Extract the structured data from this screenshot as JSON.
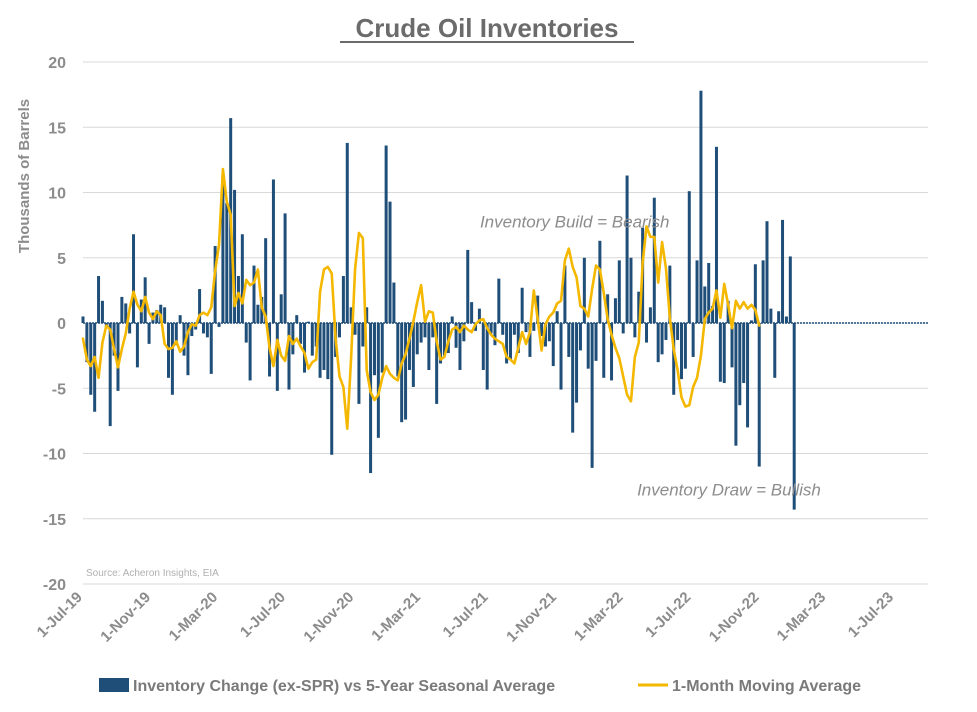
{
  "chart_data": {
    "type": "bar",
    "title": "Crude Oil Inventories",
    "ylabel": "Thousands of Barrels",
    "xlabel": "",
    "ylim": [
      -20,
      20
    ],
    "yticks": [
      20,
      15,
      10,
      5,
      0,
      -5,
      -10,
      -15,
      -20
    ],
    "grid": true,
    "legend_position": "bottom",
    "x_start": "2019-07-01",
    "x_end": "2023-08-31",
    "xtick_labels": [
      {
        "date": "2019-07-01",
        "label": "1-Jul-19"
      },
      {
        "date": "2019-11-01",
        "label": "1-Nov-19"
      },
      {
        "date": "2020-03-01",
        "label": "1-Mar-20"
      },
      {
        "date": "2020-07-01",
        "label": "1-Jul-20"
      },
      {
        "date": "2020-11-01",
        "label": "1-Nov-20"
      },
      {
        "date": "2021-03-01",
        "label": "1-Mar-21"
      },
      {
        "date": "2021-07-01",
        "label": "1-Jul-21"
      },
      {
        "date": "2021-11-01",
        "label": "1-Nov-21"
      },
      {
        "date": "2022-03-01",
        "label": "1-Mar-22"
      },
      {
        "date": "2022-07-01",
        "label": "1-Jul-22"
      },
      {
        "date": "2022-11-01",
        "label": "1-Nov-22"
      },
      {
        "date": "2023-03-01",
        "label": "1-Mar-23"
      },
      {
        "date": "2023-07-01",
        "label": "1-Jul-23"
      }
    ],
    "annotations": [
      {
        "text": "Inventory Build = Bearish",
        "date": "2021-06-15",
        "y": 7.3
      },
      {
        "text": "Inventory Draw = Bullish",
        "date": "2022-03-25",
        "y": -13.2
      }
    ],
    "source_note": "Source: Acheron Insights, EIA",
    "series": [
      {
        "name": "Inventory Change (ex-SPR) vs 5-Year Seasonal Average",
        "type": "bar",
        "color": "#1f4e79",
        "start_date": "2019-07-01",
        "week_step": 1,
        "values": [
          0.5,
          -3,
          -5.5,
          -6.8,
          3.6,
          1.7,
          -0.3,
          -7.9,
          -2.5,
          -5.2,
          2,
          1.5,
          -0.8,
          6.8,
          -3.4,
          1.8,
          3.5,
          -1.6,
          0.8,
          1,
          1.4,
          1.2,
          -4.2,
          -5.5,
          -1.7,
          0.6,
          -2.5,
          -4,
          -1,
          -0.5,
          2.6,
          -0.8,
          -1.1,
          -3.9,
          5.9,
          -0.3,
          11.3,
          9.2,
          15.7,
          10.2,
          3.6,
          6.8,
          -1.5,
          -4.4,
          4.4,
          1.4,
          2,
          6.5,
          -4.1,
          11,
          -5.2,
          2.2,
          8.4,
          -5.1,
          -2.4,
          0.6,
          -1.6,
          -3.8,
          0.1,
          -2.5,
          -1.8,
          -4.2,
          -3.6,
          -4.3,
          -10.1,
          -2.6,
          -1.1,
          3.6,
          13.8,
          1.2,
          -0.9,
          -6.2,
          -1.8,
          1.2,
          -11.5,
          -4,
          -8.8,
          -3.8,
          13.6,
          9.3,
          3.1,
          -4.1,
          -7.6,
          -7.4,
          -3.6,
          -4.9,
          -2.4,
          -1.5,
          -1.1,
          -3.6,
          -1.1,
          -6.2,
          -3.1,
          -2.5,
          -2.3,
          0.5,
          -1.9,
          -3.6,
          -1.4,
          5.6,
          1.6,
          -0.6,
          1.1,
          -3.6,
          -5.1,
          -0.8,
          -1.7,
          3.4,
          -0.9,
          -3.1,
          -2.8,
          -0.9,
          -2.3,
          2.7,
          -0.7,
          -2.6,
          -0.6,
          2.1,
          -1,
          -1.8,
          -1.4,
          -3.3,
          0.9,
          -5.1,
          4.4,
          -2.6,
          -8.4,
          -6.1,
          -2.1,
          5,
          -3.5,
          -11.1,
          -2.9,
          6.3,
          -4.2,
          2.2,
          -4.4,
          1.9,
          4.8,
          -0.8,
          11.3,
          5,
          -1.1,
          2.4,
          7.3,
          -1.5,
          1.2,
          9.6,
          -3,
          -2.4,
          -1.3,
          4.4,
          -5.5,
          -1.3,
          -4.3,
          -3.5,
          10.1,
          -2.6,
          4.8,
          17.8,
          2.8,
          4.6,
          1.3,
          13.5,
          -4.5,
          -4.6,
          1.7,
          -3.4,
          -9.4,
          -6.3,
          -4.6,
          -8,
          0.2,
          4.5,
          -11,
          4.8,
          7.8,
          1.1,
          -4.2,
          0.9,
          7.9,
          0.5,
          5.1,
          -14.3
        ]
      },
      {
        "name": "1-Month Moving Average",
        "type": "line",
        "color": "#f5b800",
        "start_date": "2019-07-01",
        "week_step": 1,
        "values": [
          -1.2,
          -2.8,
          -3.3,
          -2.6,
          -4.2,
          -1.5,
          -0.2,
          -0.5,
          -2,
          -3.4,
          -2,
          -0.8,
          1.1,
          2.4,
          1.4,
          0.9,
          2,
          0.8,
          0.3,
          0.9,
          0.6,
          -1.6,
          -2,
          -1.9,
          -1.4,
          -2.2,
          -1.8,
          -0.7,
          -0.1,
          -0.2,
          0.6,
          0.8,
          0.6,
          1.2,
          4,
          6,
          11.8,
          9.3,
          8.3,
          1.3,
          2.3,
          1.5,
          3.3,
          2.9,
          3.1,
          4.1,
          1.2,
          0.5,
          -1.9,
          -3.3,
          -1.3,
          -2.5,
          -2.9,
          -1,
          -1.6,
          -1.2,
          -1.8,
          -2.3,
          -3.5,
          -3,
          -2.8,
          2.4,
          4.1,
          4.3,
          3.8,
          -1.2,
          -4.1,
          -4.9,
          -8.1,
          -2.6,
          4.1,
          6.9,
          6.5,
          -3.6,
          -5.3,
          -5.9,
          -5.5,
          -4.2,
          -3.3,
          -3.9,
          -4.2,
          -4.4,
          -3.1,
          -2.4,
          -1.2,
          0.1,
          1.6,
          2.9,
          0.1,
          0.9,
          0.8,
          -1.4,
          -2.8,
          -2.6,
          -1.4,
          -0.5,
          -0.3,
          -0.7,
          -0.2,
          -0.5,
          -0.7,
          -0.1,
          0.2,
          0.3,
          -0.4,
          -0.9,
          -1.2,
          -1.4,
          -1.6,
          -2.6,
          -2.8,
          -3.1,
          -1.9,
          -0.7,
          -1.6,
          -0.7,
          2.5,
          0.3,
          -2.1,
          -0.1,
          0.5,
          0.8,
          1.5,
          1.7,
          4.8,
          5.7,
          4.3,
          3.5,
          1.3,
          1.1,
          0.5,
          2.6,
          4.4,
          4.1,
          2.3,
          0.3,
          -0.9,
          -1.9,
          -2.7,
          -4.1,
          -5.5,
          -6,
          -2.6,
          -1.5,
          4.6,
          7.4,
          6.6,
          6.6,
          3.1,
          6.2,
          4.2,
          0.4,
          -2,
          -3.6,
          -5.7,
          -6.4,
          -6.3,
          -4.9,
          -4.2,
          -2.5,
          0.3,
          0.8,
          1.1,
          2.5,
          0.4,
          3,
          1.4,
          -0.4,
          1.7,
          1.1,
          1.6,
          1.1,
          1.4,
          1,
          -0.2
        ]
      }
    ]
  }
}
